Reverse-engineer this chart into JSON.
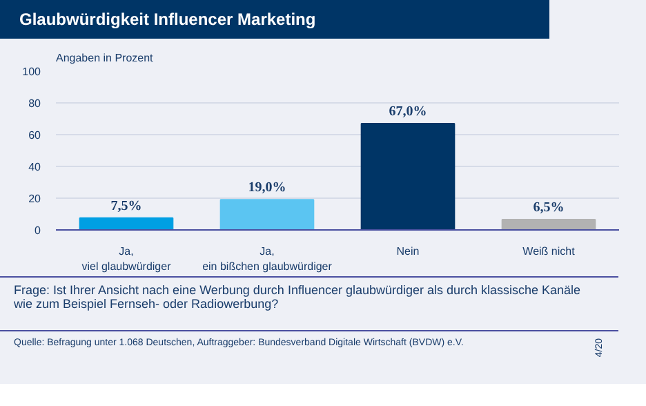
{
  "chart_data": {
    "type": "bar",
    "title": "Glaubwürdigkeit Influencer Marketing",
    "ylabel": "Angaben in Prozent",
    "categories": [
      "Ja,\nviel glaubwürdiger",
      "Ja,\nein bißchen glaubwürdiger",
      "Nein",
      "Weiß nicht"
    ],
    "values": [
      7.5,
      19.0,
      67.0,
      6.5
    ],
    "colors": [
      "#009fe3",
      "#5bc5f2",
      "#003566",
      "#b2b2b2"
    ],
    "value_labels": [
      "7,5%",
      "19,0%",
      "67,0%",
      "6,5%"
    ],
    "ylim": [
      0,
      100
    ],
    "yticks": [
      0,
      20,
      40,
      60,
      80,
      100
    ],
    "grid": "y",
    "annotations": [
      "Frage: Ist Ihrer Ansicht nach eine Werbung durch Influencer glaubwürdiger als durch klassische Kanäle wie zum Beispiel Fernseh- oder Radiowerbung?",
      "Quelle: Befragung unter 1.068 Deutschen, Auftraggeber: Bundesverband Digitale Wirtschaft (BVDW) e.V.",
      "4/20"
    ]
  }
}
